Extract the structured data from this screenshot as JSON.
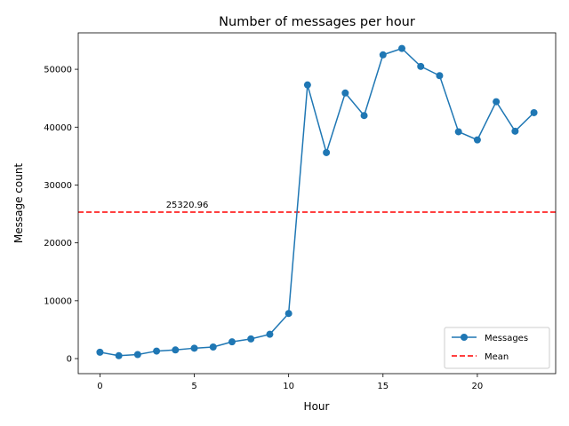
{
  "chart_data": {
    "type": "line",
    "title": "Number of messages per hour",
    "xlabel": "Hour",
    "ylabel": "Message count",
    "xlim": [
      -1.15,
      24.15
    ],
    "ylim": [
      -2600,
      56300
    ],
    "x_ticks": [
      0,
      5,
      10,
      15,
      20
    ],
    "x_tick_labels": [
      "0",
      "5",
      "10",
      "15",
      "20"
    ],
    "y_ticks": [
      0,
      10000,
      20000,
      30000,
      40000,
      50000
    ],
    "y_tick_labels": [
      "0",
      "10000",
      "20000",
      "30000",
      "40000",
      "50000"
    ],
    "x": [
      0,
      1,
      2,
      3,
      4,
      5,
      6,
      7,
      8,
      9,
      10,
      11,
      12,
      13,
      14,
      15,
      16,
      17,
      18,
      19,
      20,
      21,
      22,
      23
    ],
    "series": [
      {
        "name": "Messages",
        "color": "#1f77b4",
        "marker": "circle",
        "values": [
          1100,
          500,
          700,
          1300,
          1500,
          1800,
          2000,
          2900,
          3400,
          4200,
          7800,
          47300,
          35600,
          45900,
          42000,
          52500,
          53600,
          50500,
          48900,
          39200,
          37800,
          44400,
          39300,
          42500
        ]
      }
    ],
    "reference_lines": [
      {
        "name": "Mean",
        "value": 25320.96,
        "label": "25320.96",
        "color": "#ff0000",
        "style": "dashed"
      }
    ],
    "legend": {
      "placement": "lower-right",
      "entries": [
        "Messages",
        "Mean"
      ]
    },
    "grid": false
  }
}
